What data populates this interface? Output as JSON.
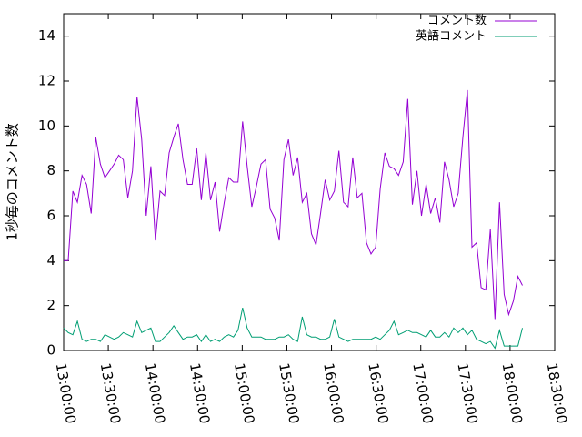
{
  "chart_data": {
    "type": "line",
    "y_label": "1秒毎のコメント数",
    "x": [
      "13:00:00",
      "13:03:05",
      "13:06:10",
      "13:09:15",
      "13:12:20",
      "13:15:25",
      "13:18:30",
      "13:21:35",
      "13:24:40",
      "13:27:45",
      "13:30:50",
      "13:33:55",
      "13:37:00",
      "13:40:05",
      "13:43:10",
      "13:46:15",
      "13:49:20",
      "13:52:25",
      "13:55:30",
      "13:58:35",
      "14:01:40",
      "14:04:45",
      "14:07:50",
      "14:10:55",
      "14:14:00",
      "14:17:05",
      "14:20:10",
      "14:23:15",
      "14:26:20",
      "14:29:25",
      "14:32:30",
      "14:35:35",
      "14:38:40",
      "14:41:45",
      "14:44:50",
      "14:47:55",
      "14:51:00",
      "14:54:05",
      "14:57:10",
      "15:00:15",
      "15:03:20",
      "15:06:25",
      "15:09:30",
      "15:12:35",
      "15:15:40",
      "15:18:45",
      "15:21:50",
      "15:24:55",
      "15:28:00",
      "15:31:05",
      "15:34:10",
      "15:37:15",
      "15:40:20",
      "15:43:25",
      "15:46:30",
      "15:49:35",
      "15:52:40",
      "15:55:45",
      "15:58:50",
      "16:01:55",
      "16:05:00",
      "16:08:05",
      "16:11:10",
      "16:14:15",
      "16:17:20",
      "16:20:25",
      "16:23:30",
      "16:26:35",
      "16:29:40",
      "16:32:45",
      "16:35:50",
      "16:38:55",
      "16:42:00",
      "16:45:05",
      "16:48:10",
      "16:51:15",
      "16:54:20",
      "16:57:25",
      "17:00:30",
      "17:03:35",
      "17:06:40",
      "17:09:45",
      "17:12:50",
      "17:15:55",
      "17:19:00",
      "17:22:05",
      "17:25:10",
      "17:28:15",
      "17:31:20",
      "17:34:25",
      "17:37:30",
      "17:40:35",
      "17:43:40",
      "17:46:45",
      "17:49:50",
      "17:52:55",
      "17:56:00",
      "17:59:05",
      "18:02:10",
      "18:05:15",
      "18:08:20"
    ],
    "series": [
      {
        "name": "コメント数",
        "color": "#9400d3",
        "values": [
          4.0,
          4.0,
          7.1,
          6.6,
          7.8,
          7.4,
          6.1,
          9.5,
          8.3,
          7.7,
          8.0,
          8.3,
          8.7,
          8.5,
          6.8,
          8.0,
          11.3,
          9.4,
          6.0,
          8.2,
          4.9,
          7.1,
          6.9,
          8.8,
          9.5,
          10.1,
          8.5,
          7.4,
          7.4,
          9.0,
          6.7,
          8.8,
          6.7,
          7.5,
          5.3,
          6.6,
          7.7,
          7.5,
          7.5,
          10.2,
          8.2,
          6.4,
          7.3,
          8.3,
          8.5,
          6.3,
          5.9,
          4.9,
          8.5,
          9.4,
          7.8,
          8.6,
          6.6,
          7.0,
          5.2,
          4.7,
          6.1,
          7.6,
          6.7,
          7.1,
          8.9,
          6.6,
          6.4,
          8.6,
          6.8,
          7.0,
          4.8,
          4.3,
          4.6,
          7.2,
          8.8,
          8.2,
          8.1,
          7.8,
          8.4,
          11.2,
          6.5,
          8.0,
          6.0,
          7.4,
          6.1,
          6.8,
          5.7,
          8.4,
          7.6,
          6.4,
          7.0,
          9.5,
          11.6,
          4.6,
          4.8,
          2.8,
          2.7,
          5.4,
          1.4,
          6.6,
          2.5,
          1.6,
          2.2,
          3.3,
          2.9
        ]
      },
      {
        "name": "英語コメント",
        "color": "#009e73",
        "values": [
          1.0,
          0.8,
          0.7,
          1.3,
          0.5,
          0.4,
          0.5,
          0.5,
          0.4,
          0.7,
          0.6,
          0.5,
          0.6,
          0.8,
          0.7,
          0.6,
          1.3,
          0.8,
          0.9,
          1.0,
          0.4,
          0.4,
          0.6,
          0.8,
          1.1,
          0.8,
          0.5,
          0.6,
          0.6,
          0.7,
          0.4,
          0.7,
          0.4,
          0.5,
          0.4,
          0.6,
          0.7,
          0.6,
          0.9,
          1.9,
          1.0,
          0.6,
          0.6,
          0.6,
          0.5,
          0.5,
          0.5,
          0.6,
          0.6,
          0.7,
          0.5,
          0.4,
          1.5,
          0.7,
          0.6,
          0.6,
          0.5,
          0.5,
          0.6,
          1.4,
          0.6,
          0.5,
          0.4,
          0.5,
          0.5,
          0.5,
          0.5,
          0.5,
          0.6,
          0.5,
          0.7,
          0.9,
          1.3,
          0.7,
          0.8,
          0.9,
          0.8,
          0.8,
          0.7,
          0.6,
          0.9,
          0.6,
          0.6,
          0.8,
          0.6,
          1.0,
          0.8,
          1.0,
          0.7,
          0.9,
          0.5,
          0.4,
          0.3,
          0.4,
          0.1,
          0.9,
          0.2,
          0.2,
          0.2,
          0.2,
          1.0
        ]
      }
    ],
    "xlim": [
      "13:00:00",
      "18:30:00"
    ],
    "xticks": [
      "13:00:00",
      "13:30:00",
      "14:00:00",
      "14:30:00",
      "15:00:00",
      "15:30:00",
      "16:00:00",
      "16:30:00",
      "17:00:00",
      "17:30:00",
      "18:00:00",
      "18:30:00"
    ],
    "ylim": [
      0,
      15
    ],
    "yticks": [
      0,
      2,
      4,
      6,
      8,
      10,
      12,
      14
    ],
    "legend": "top-right"
  }
}
